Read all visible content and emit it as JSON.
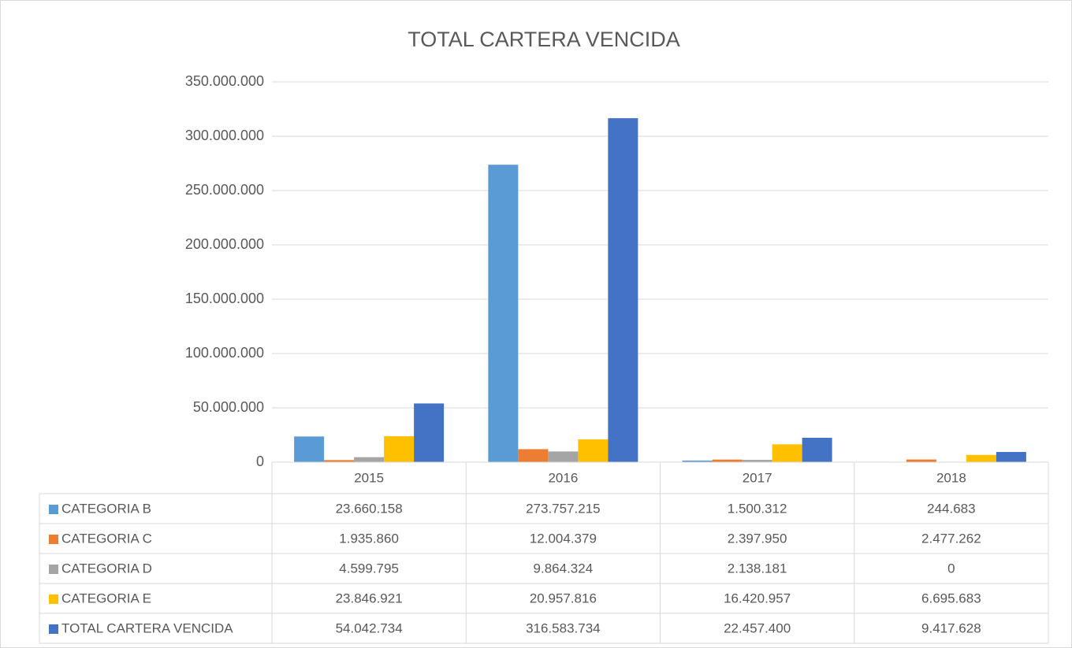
{
  "chart_data": {
    "type": "bar",
    "title": "TOTAL CARTERA VENCIDA",
    "categories": [
      "2015",
      "2016",
      "2017",
      "2018"
    ],
    "series": [
      {
        "name": "CATEGORIA B",
        "color": "#5b9bd5",
        "values": [
          23660158,
          273757215,
          1500312,
          244683
        ],
        "value_labels": [
          "23.660.158",
          "273.757.215",
          "1.500.312",
          "244.683"
        ]
      },
      {
        "name": "CATEGORIA C",
        "color": "#ed7d31",
        "values": [
          1935860,
          12004379,
          2397950,
          2477262
        ],
        "value_labels": [
          "1.935.860",
          "12.004.379",
          "2.397.950",
          "2.477.262"
        ]
      },
      {
        "name": "CATEGORIA D",
        "color": "#a5a5a5",
        "values": [
          4599795,
          9864324,
          2138181,
          0
        ],
        "value_labels": [
          "4.599.795",
          "9.864.324",
          "2.138.181",
          "0"
        ]
      },
      {
        "name": "CATEGORIA E",
        "color": "#ffc000",
        "values": [
          23846921,
          20957816,
          16420957,
          6695683
        ],
        "value_labels": [
          "23.846.921",
          "20.957.816",
          "16.420.957",
          "6.695.683"
        ]
      },
      {
        "name": "TOTAL CARTERA VENCIDA",
        "color": "#4472c4",
        "values": [
          54042734,
          316583734,
          22457400,
          9417628
        ],
        "value_labels": [
          "54.042.734",
          "316.583.734",
          "22.457.400",
          "9.417.628"
        ]
      }
    ],
    "ylim": [
      0,
      350000000
    ],
    "yticks": [
      0,
      {
        "value": 50000000,
        "label": "50.000.000"
      },
      {
        "value": 100000000,
        "label": "100.000.000"
      },
      {
        "value": 150000000,
        "label": "150.000.000"
      },
      {
        "value": 200000000,
        "label": "200.000.000"
      },
      {
        "value": 250000000,
        "label": "250.000.000"
      },
      {
        "value": 300000000,
        "label": "300.000.000"
      },
      {
        "value": 350000000,
        "label": "350.000.000"
      }
    ],
    "grid": true
  }
}
